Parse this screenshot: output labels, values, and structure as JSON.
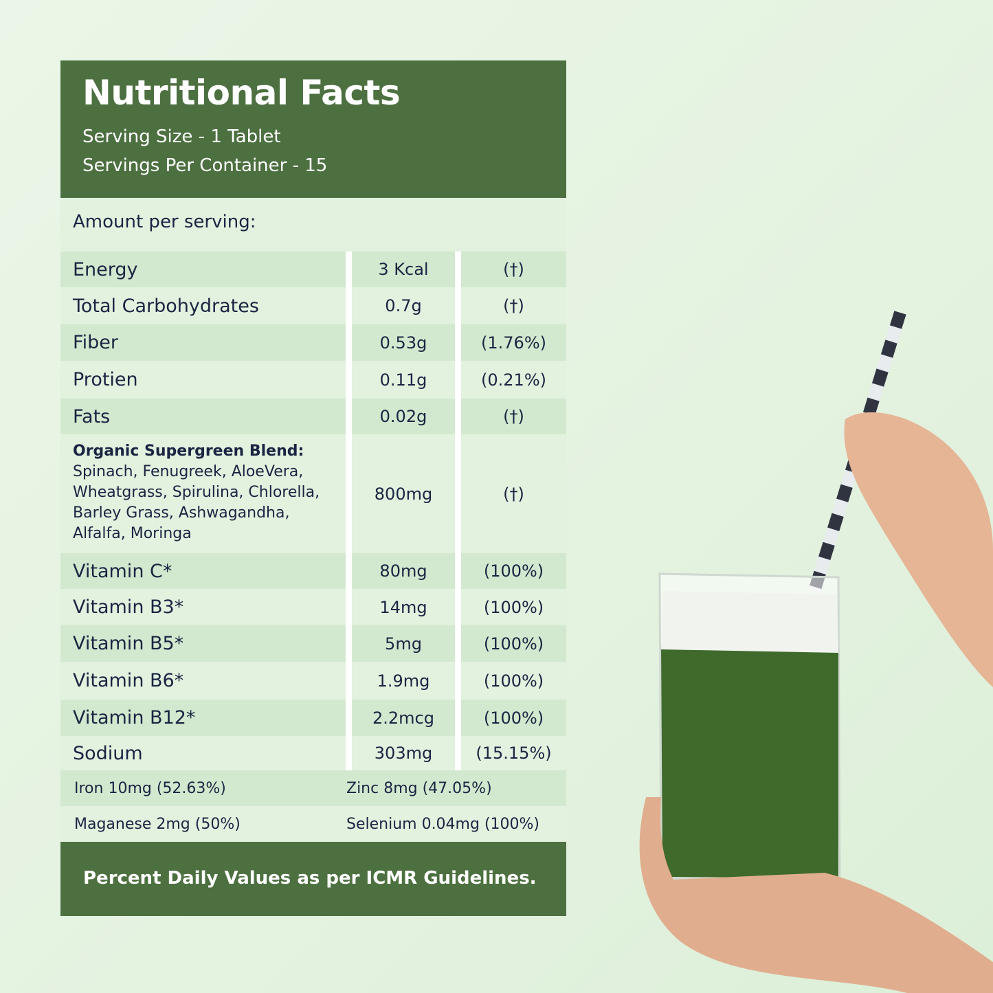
{
  "header": {
    "title": "Nutritional Facts",
    "serving_size": "Serving Size - 1 Tablet",
    "servings_per_container": "Servings Per Container - 15"
  },
  "amount_label": "Amount per serving:",
  "rows": [
    {
      "name": "Energy",
      "value": "3 Kcal",
      "dv": "(†)"
    },
    {
      "name": "Total Carbohydrates",
      "value": "0.7g",
      "dv": "(†)"
    },
    {
      "name": "Fiber",
      "value": "0.53g",
      "dv": "(1.76%)"
    },
    {
      "name": "Protien",
      "value": "0.11g",
      "dv": "(0.21%)"
    },
    {
      "name": "Fats",
      "value": "0.02g",
      "dv": "(†)"
    },
    {
      "name": "Organic Supergreen Blend:",
      "ingredients": "Spinach, Fenugreek, AloeVera, Wheatgrass, Spirulina, Chlorella, Barley Grass, Ashwagandha, Alfalfa, Moringa",
      "value": "800mg",
      "dv": "(†)"
    },
    {
      "name": "Vitamin C*",
      "value": "80mg",
      "dv": "(100%)"
    },
    {
      "name": "Vitamin B3*",
      "value": "14mg",
      "dv": "(100%)"
    },
    {
      "name": "Vitamin B5*",
      "value": "5mg",
      "dv": "(100%)"
    },
    {
      "name": "Vitamin B6*",
      "value": "1.9mg",
      "dv": "(100%)"
    },
    {
      "name": "Vitamin B12*",
      "value": "2.2mcg",
      "dv": "(100%)"
    },
    {
      "name": "Sodium",
      "value": "303mg",
      "dv": "(15.15%)"
    }
  ],
  "minerals": [
    [
      "Iron 10mg (52.63%)",
      "Zinc 8mg (47.05%)"
    ],
    [
      "Maganese 2mg (50%)",
      "Selenium 0.04mg (100%)"
    ]
  ],
  "footer": "Percent Daily Values as per ICMR Guidelines.",
  "colors": {
    "brand_green": "#4d7040",
    "row_dark": "#d3e9cf",
    "row_light": "#e3f1df",
    "text": "#1b2442"
  }
}
